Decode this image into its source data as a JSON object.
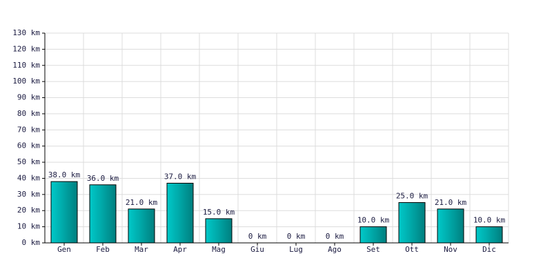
{
  "chart_data": {
    "type": "bar",
    "categories": [
      "Gen",
      "Feb",
      "Mar",
      "Apr",
      "Mag",
      "Giu",
      "Lug",
      "Ago",
      "Set",
      "Ott",
      "Nov",
      "Dic"
    ],
    "values": [
      38,
      36,
      21,
      37,
      15,
      0,
      0,
      0,
      10,
      25,
      21,
      10
    ],
    "value_labels": [
      "38.0 km",
      "36.0 km",
      "21.0 km",
      "37.0 km",
      "15.0 km",
      "0 km",
      "0 km",
      "0 km",
      "10.0 km",
      "25.0 km",
      "21.0 km",
      "10.0 km"
    ],
    "color": "#00d4d4",
    "ylim": [
      0,
      130
    ],
    "yticks": [
      {
        "value": 0,
        "label": "0 km"
      },
      {
        "value": 10,
        "label": "10 km"
      },
      {
        "value": 20,
        "label": "20 km"
      },
      {
        "value": 30,
        "label": "30 km"
      },
      {
        "value": 40,
        "label": "40 km"
      },
      {
        "value": 50,
        "label": "50 km"
      },
      {
        "value": 60,
        "label": "60 km"
      },
      {
        "value": 70,
        "label": "70 km"
      },
      {
        "value": 80,
        "label": "80 km"
      },
      {
        "value": 90,
        "label": "90 km"
      },
      {
        "value": 100,
        "label": "100 km"
      },
      {
        "value": 110,
        "label": "110 km"
      },
      {
        "value": 120,
        "label": "120 km"
      },
      {
        "value": 130,
        "label": "130 km"
      }
    ],
    "grid": true
  }
}
